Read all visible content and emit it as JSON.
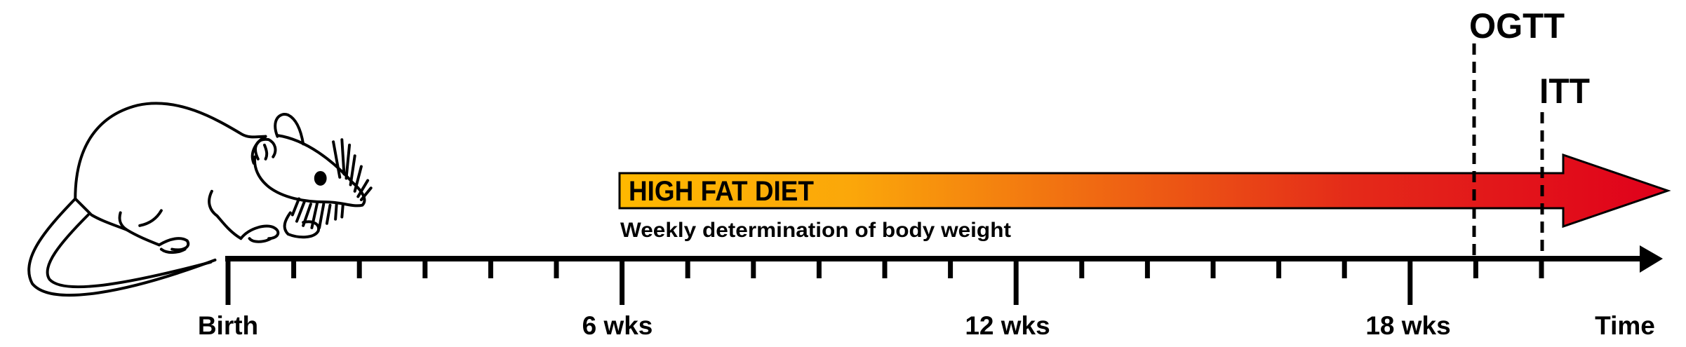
{
  "diet_bar": {
    "label": "HIGH FAT DIET",
    "sublabel": "Weekly determination of body weight",
    "gradient_start": "#FFB800",
    "gradient_end": "#E0001B"
  },
  "tests": [
    {
      "label": "OGTT"
    },
    {
      "label": "ITT"
    }
  ],
  "timeline": {
    "labels": {
      "birth": "Birth",
      "wk6": "6 wks",
      "wk12": "12 wks",
      "wk18": "18 wks",
      "time": "Time"
    }
  },
  "icons": {
    "animal": "mouse-icon"
  }
}
